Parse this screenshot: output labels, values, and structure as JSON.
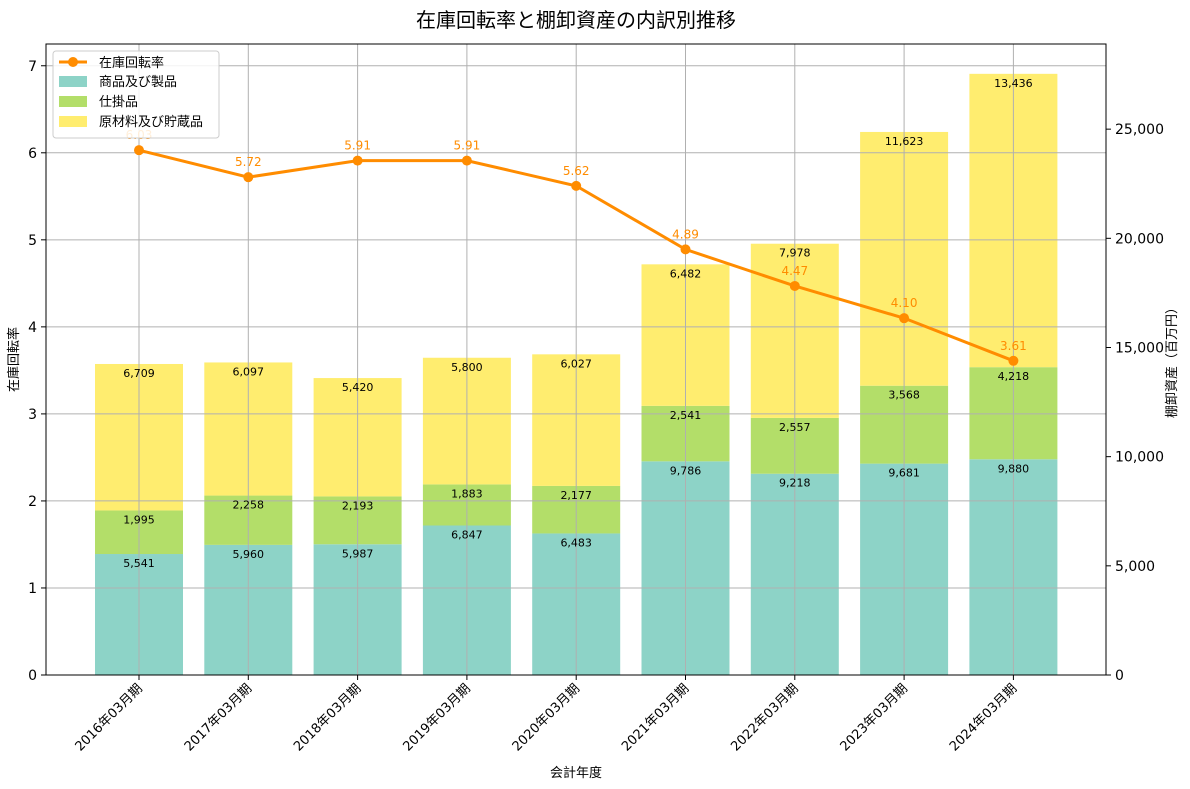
{
  "chart_data": {
    "type": "bar",
    "title": "在庫回転率と棚卸資産の内訳別推移",
    "xlabel": "会計年度",
    "ylabel_left": "在庫回転率",
    "ylabel_right": "棚卸資産（百万円）",
    "ylim_left": [
      0,
      7.25
    ],
    "ylim_right": [
      0,
      28900
    ],
    "yticks_left": [
      "0",
      "1",
      "2",
      "3",
      "4",
      "5",
      "6",
      "7"
    ],
    "yticks_right": [
      "0",
      "5,000",
      "10,000",
      "15,000",
      "20,000",
      "25,000"
    ],
    "grid": true,
    "legend_position": "top-left",
    "categories": [
      "2016年03月期",
      "2017年03月期",
      "2018年03月期",
      "2019年03月期",
      "2020年03月期",
      "2021年03月期",
      "2022年03月期",
      "2023年03月期",
      "2024年03月期"
    ],
    "bar_series": [
      {
        "name": "商品及び製品",
        "color": "#8dd3c7",
        "values": [
          5541,
          5960,
          5987,
          6847,
          6483,
          9786,
          9218,
          9681,
          9880
        ],
        "labels": [
          "5,541",
          "5,960",
          "5,987",
          "6,847",
          "6,483",
          "9,786",
          "9,218",
          "9,681",
          "9,880"
        ]
      },
      {
        "name": "仕掛品",
        "color": "#b3de69",
        "values": [
          1995,
          2258,
          2193,
          1883,
          2177,
          2541,
          2557,
          3568,
          4218
        ],
        "labels": [
          "1,995",
          "2,258",
          "2,193",
          "1,883",
          "2,177",
          "2,541",
          "2,557",
          "3,568",
          "4,218"
        ]
      },
      {
        "name": "原材料及び貯蔵品",
        "color": "#ffed6f",
        "values": [
          6709,
          6097,
          5420,
          5800,
          6027,
          6482,
          7978,
          11623,
          13436
        ],
        "labels": [
          "6,709",
          "6,097",
          "5,420",
          "5,800",
          "6,027",
          "6,482",
          "7,978",
          "11,623",
          "13,436"
        ]
      }
    ],
    "line_series": {
      "name": "在庫回転率",
      "color": "#ff8c00",
      "values": [
        6.03,
        5.72,
        5.91,
        5.91,
        5.62,
        4.89,
        4.47,
        4.1,
        3.61
      ],
      "labels": [
        "6.03",
        "5.72",
        "5.91",
        "5.91",
        "5.62",
        "4.89",
        "4.47",
        "4.10",
        "3.61"
      ]
    }
  }
}
